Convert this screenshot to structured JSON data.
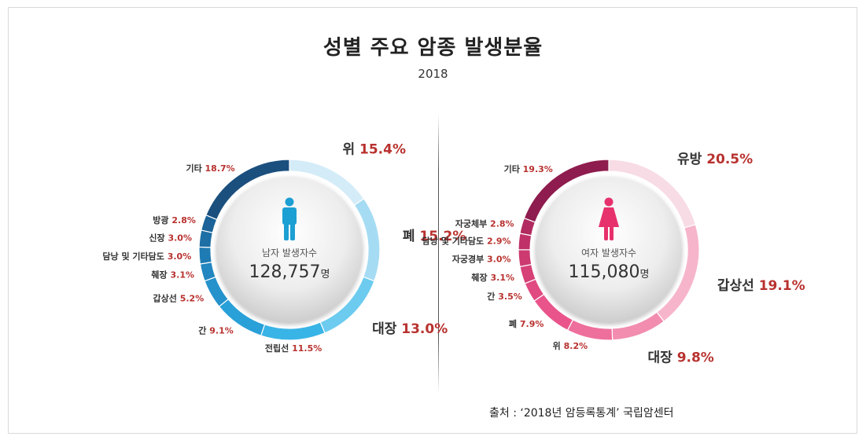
{
  "title": "성별 주요 암종 발생분율",
  "year": "2018",
  "source": "출처 : ‘2018년 암등록통계’ 국립암센터",
  "chart_data": [
    {
      "type": "pie",
      "center_label": "남자 발생자수",
      "center_value": "128,757",
      "center_unit": "명",
      "icon": "male-figure-icon",
      "slices": [
        {
          "label": "위",
          "value": 15.4,
          "text": "15.4%",
          "color": "#d4ecf8",
          "big": true
        },
        {
          "label": "폐",
          "value": 15.2,
          "text": "15.2%",
          "color": "#a6dcf3",
          "big": true
        },
        {
          "label": "대장",
          "value": 13.0,
          "text": "13.0%",
          "color": "#6ccbef",
          "big": true
        },
        {
          "label": "전립선",
          "value": 11.5,
          "text": "11.5%",
          "color": "#39b4e6",
          "big": false
        },
        {
          "label": "간",
          "value": 9.1,
          "text": "9.1%",
          "color": "#2aa0d8",
          "big": false
        },
        {
          "label": "갑상선",
          "value": 5.2,
          "text": "5.2%",
          "color": "#2592cc",
          "big": false
        },
        {
          "label": "췌장",
          "value": 3.1,
          "text": "3.1%",
          "color": "#2286c0",
          "big": false
        },
        {
          "label": "담낭 및 기타담도",
          "value": 3.0,
          "text": "3.0%",
          "color": "#1f7bb3",
          "big": false
        },
        {
          "label": "신장",
          "value": 3.0,
          "text": "3.0%",
          "color": "#1d6fa5",
          "big": false
        },
        {
          "label": "방광",
          "value": 2.8,
          "text": "2.8%",
          "color": "#1b6398",
          "big": false
        },
        {
          "label": "기타",
          "value": 18.7,
          "text": "18.7%",
          "color": "#1b4f7e",
          "big": false
        }
      ]
    },
    {
      "type": "pie",
      "center_label": "여자 발생자수",
      "center_value": "115,080",
      "center_unit": "명",
      "icon": "female-figure-icon",
      "slices": [
        {
          "label": "유방",
          "value": 20.5,
          "text": "20.5%",
          "color": "#f7dbe5",
          "big": true
        },
        {
          "label": "갑상선",
          "value": 19.1,
          "text": "19.1%",
          "color": "#f6b5cb",
          "big": true
        },
        {
          "label": "대장",
          "value": 9.8,
          "text": "9.8%",
          "color": "#f28db0",
          "big": true
        },
        {
          "label": "위",
          "value": 8.2,
          "text": "8.2%",
          "color": "#ee6f9b",
          "big": false
        },
        {
          "label": "폐",
          "value": 7.9,
          "text": "7.9%",
          "color": "#e9558a",
          "big": false
        },
        {
          "label": "간",
          "value": 3.5,
          "text": "3.5%",
          "color": "#e04a80",
          "big": false
        },
        {
          "label": "췌장",
          "value": 3.1,
          "text": "3.1%",
          "color": "#d64177",
          "big": false
        },
        {
          "label": "자궁경부",
          "value": 3.0,
          "text": "3.0%",
          "color": "#cc3a70",
          "big": false
        },
        {
          "label": "담낭 및 기타담도",
          "value": 2.9,
          "text": "2.9%",
          "color": "#bf3168",
          "big": false
        },
        {
          "label": "자궁체부",
          "value": 2.8,
          "text": "2.8%",
          "color": "#b12a60",
          "big": false
        },
        {
          "label": "기타",
          "value": 19.3,
          "text": "19.3%",
          "color": "#8e1c4e",
          "big": false
        }
      ]
    }
  ]
}
